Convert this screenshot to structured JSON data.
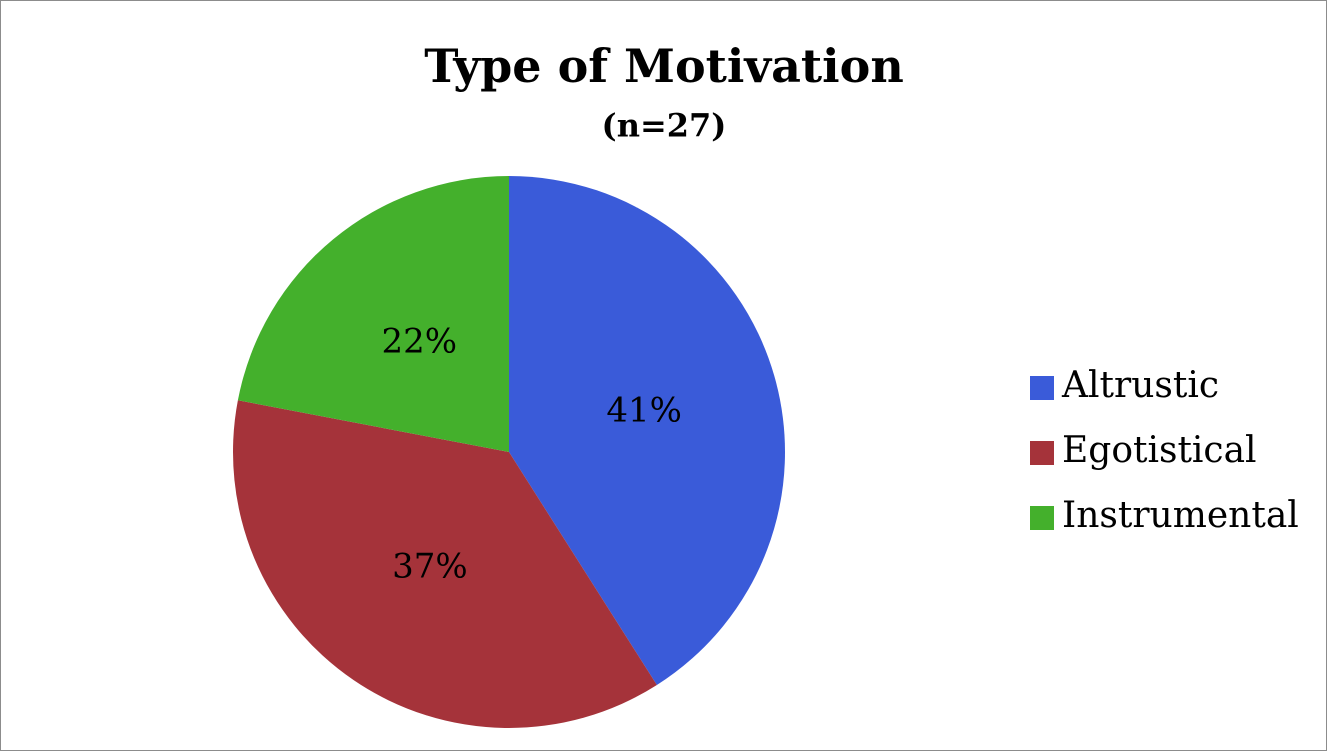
{
  "chart_data": {
    "type": "pie",
    "title": "Type of Motivation",
    "subtitle": "(n=27)",
    "categories": [
      "Altrustic",
      "Egotistical",
      "Instrumental"
    ],
    "values": [
      41,
      37,
      22
    ],
    "value_labels": [
      "41%",
      "37%",
      "22%"
    ],
    "colors": [
      "#3a5bd9",
      "#a5333a",
      "#44b02c"
    ],
    "legend": "right"
  }
}
